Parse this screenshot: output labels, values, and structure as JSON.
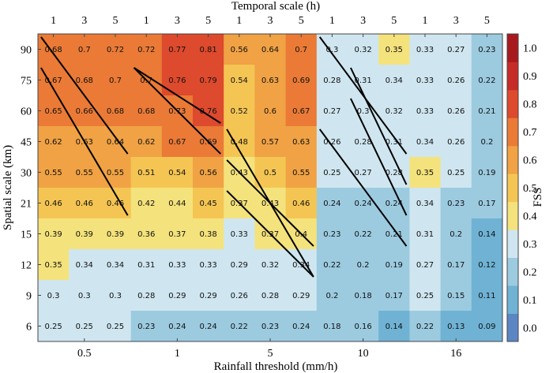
{
  "chart_data": {
    "type": "heatmap",
    "title": "",
    "top_xlabel": "Temporal scale (h)",
    "xlabel": "Rainfall threshold (mm/h)",
    "ylabel": "Spatial scale (km)",
    "colorbar_label": "FSS",
    "temporal_ticks": [
      "1",
      "3",
      "5",
      "1",
      "3",
      "5",
      "1",
      "3",
      "5",
      "1",
      "3",
      "5",
      "1",
      "3",
      "5"
    ],
    "threshold_groups": [
      {
        "label": "0.5",
        "columns": [
          0,
          1,
          2
        ]
      },
      {
        "label": "1",
        "columns": [
          3,
          4,
          5
        ]
      },
      {
        "label": "5",
        "columns": [
          6,
          7,
          8
        ]
      },
      {
        "label": "10",
        "columns": [
          9,
          10,
          11
        ]
      },
      {
        "label": "16",
        "columns": [
          12,
          13,
          14
        ]
      }
    ],
    "temporal_scale_shown": [
      "1",
      "3",
      "5",
      "1",
      "3",
      "5",
      "1",
      "3",
      "5",
      "1",
      "3",
      "5",
      "1",
      "3",
      "5"
    ],
    "top_tick_labels": [
      "1",
      "3",
      "5",
      "1",
      "3",
      "5",
      "1",
      "3",
      "5",
      "1",
      "3",
      "5",
      "1",
      "3",
      "5"
    ],
    "spatial_scales": [
      "90",
      "75",
      "60",
      "45",
      "30",
      "21",
      "15",
      "12",
      "9",
      "6"
    ],
    "values": [
      [
        0.68,
        0.7,
        0.72,
        0.72,
        0.77,
        0.81,
        0.56,
        0.64,
        0.7,
        0.3,
        0.32,
        0.35,
        0.33,
        0.27,
        0.23
      ],
      [
        0.67,
        0.68,
        0.7,
        0.7,
        0.76,
        0.79,
        0.54,
        0.63,
        0.69,
        0.28,
        0.31,
        0.34,
        0.33,
        0.26,
        0.22
      ],
      [
        0.65,
        0.66,
        0.68,
        0.68,
        0.73,
        0.76,
        0.52,
        0.6,
        0.67,
        0.27,
        0.3,
        0.32,
        0.33,
        0.26,
        0.21
      ],
      [
        0.62,
        0.63,
        0.64,
        0.62,
        0.67,
        0.69,
        0.48,
        0.57,
        0.63,
        0.26,
        0.28,
        0.31,
        0.34,
        0.26,
        0.2
      ],
      [
        0.55,
        0.55,
        0.55,
        0.51,
        0.54,
        0.56,
        0.43,
        0.5,
        0.55,
        0.25,
        0.27,
        0.28,
        0.35,
        0.25,
        0.19
      ],
      [
        0.46,
        0.46,
        0.46,
        0.42,
        0.44,
        0.45,
        0.37,
        0.43,
        0.46,
        0.24,
        0.24,
        0.24,
        0.34,
        0.23,
        0.17
      ],
      [
        0.39,
        0.39,
        0.39,
        0.36,
        0.37,
        0.38,
        0.33,
        0.37,
        0.4,
        0.23,
        0.22,
        0.21,
        0.31,
        0.2,
        0.14
      ],
      [
        0.35,
        0.34,
        0.34,
        0.31,
        0.33,
        0.33,
        0.29,
        0.32,
        0.34,
        0.22,
        0.2,
        0.19,
        0.27,
        0.17,
        0.12
      ],
      [
        0.3,
        0.3,
        0.3,
        0.28,
        0.29,
        0.29,
        0.26,
        0.28,
        0.29,
        0.2,
        0.18,
        0.17,
        0.25,
        0.15,
        0.11
      ],
      [
        0.25,
        0.25,
        0.25,
        0.23,
        0.24,
        0.24,
        0.22,
        0.23,
        0.24,
        0.18,
        0.16,
        0.14,
        0.22,
        0.13,
        0.09
      ]
    ],
    "colorbar": {
      "ticks": [
        "0.0",
        "0.1",
        "0.2",
        "0.3",
        "0.4",
        "0.5",
        "0.6",
        "0.7",
        "0.8",
        "0.9",
        "1.0"
      ],
      "bins": [
        {
          "min": -0.05,
          "max": 0.05,
          "color": "#5b86c4"
        },
        {
          "min": 0.05,
          "max": 0.15,
          "color": "#6fb2d4"
        },
        {
          "min": 0.15,
          "max": 0.25,
          "color": "#9ccbe0"
        },
        {
          "min": 0.25,
          "max": 0.35,
          "color": "#cfe6f0"
        },
        {
          "min": 0.35,
          "max": 0.45,
          "color": "#f4e27c"
        },
        {
          "min": 0.45,
          "max": 0.55,
          "color": "#f4c553"
        },
        {
          "min": 0.55,
          "max": 0.65,
          "color": "#f0a244"
        },
        {
          "min": 0.65,
          "max": 0.75,
          "color": "#ea7a36"
        },
        {
          "min": 0.75,
          "max": 0.85,
          "color": "#dd4a2d"
        },
        {
          "min": 0.85,
          "max": 0.95,
          "color": "#c62b27"
        },
        {
          "min": 0.95,
          "max": 1.05,
          "color": "#a8191e"
        }
      ]
    },
    "hatch_segments": [
      {
        "from": [
          0,
          0
        ],
        "to": [
          3,
          2
        ]
      },
      {
        "from": [
          1,
          0
        ],
        "to": [
          5,
          2
        ]
      },
      {
        "from": [
          1,
          3
        ],
        "to": [
          2,
          5
        ]
      },
      {
        "from": [
          1,
          3
        ],
        "to": [
          3,
          5
        ]
      },
      {
        "from": [
          3,
          6
        ],
        "to": [
          7,
          8
        ]
      },
      {
        "from": [
          4,
          6
        ],
        "to": [
          6,
          8
        ]
      },
      {
        "from": [
          5,
          6
        ],
        "to": [
          7,
          8
        ]
      },
      {
        "from": [
          0,
          9
        ],
        "to": [
          3,
          11
        ]
      },
      {
        "from": [
          1,
          10
        ],
        "to": [
          4,
          11
        ]
      },
      {
        "from": [
          2,
          10
        ],
        "to": [
          5,
          11
        ]
      },
      {
        "from": [
          3,
          9
        ],
        "to": [
          6,
          11
        ]
      }
    ]
  }
}
